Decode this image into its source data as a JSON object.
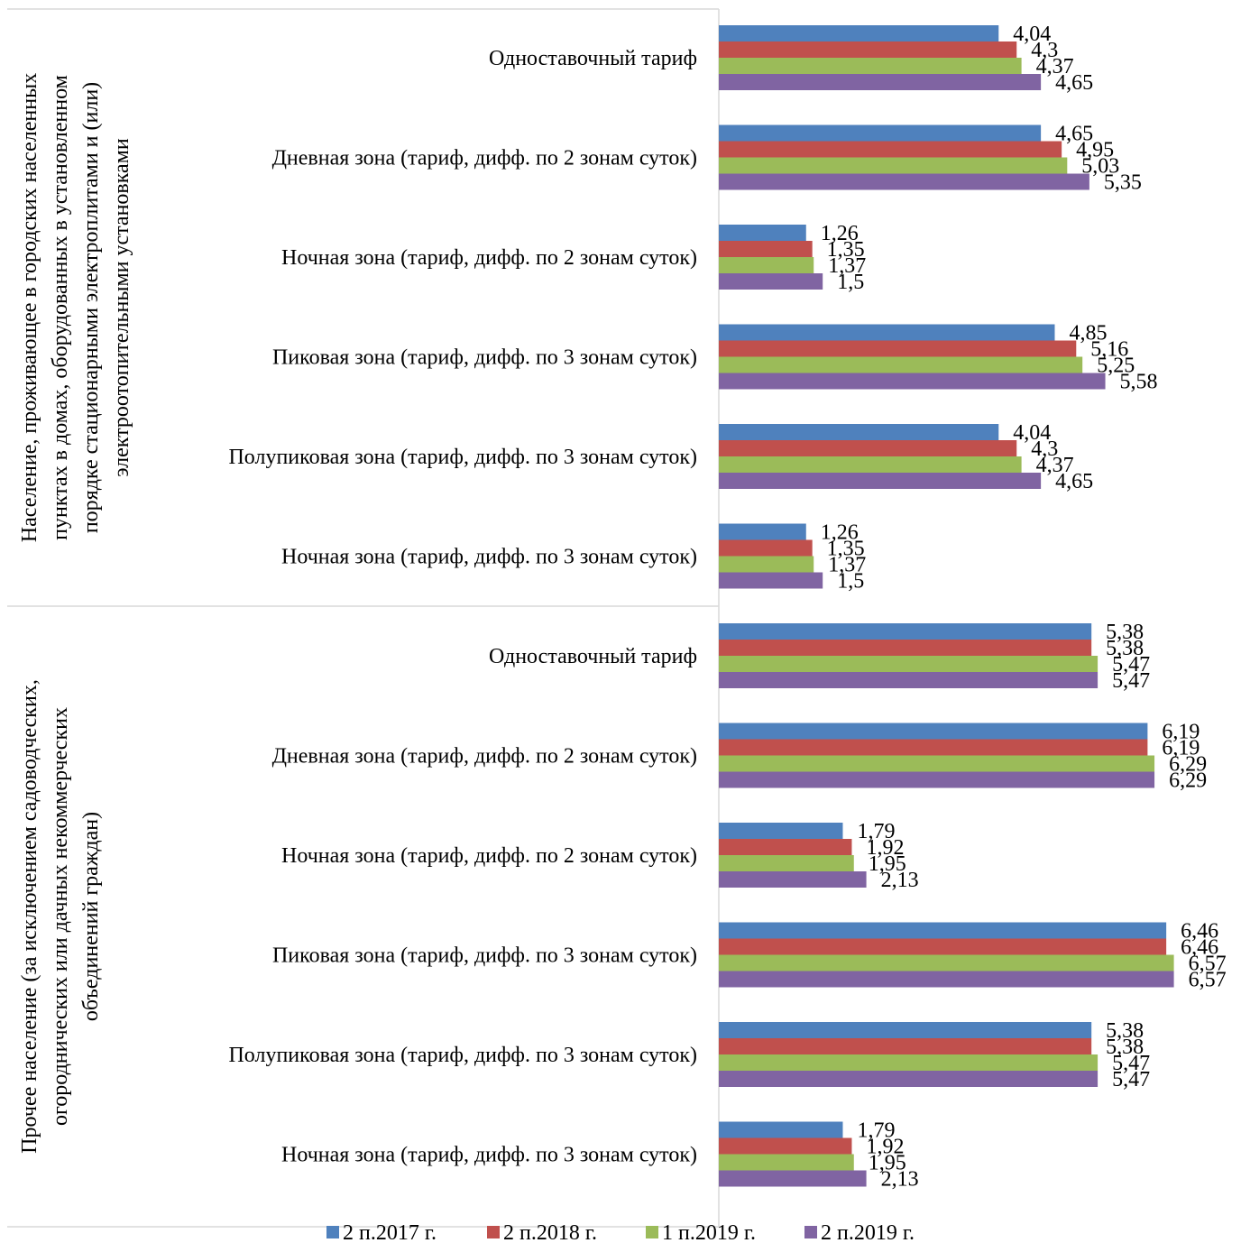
{
  "chart_data": {
    "type": "bar",
    "orientation": "horizontal",
    "groups": [
      {
        "label": "Население, проживающее в городских населенных пунктах в домах, оборудованных в установленном порядке стационарными электроплитами и (или) электроотопительными установками",
        "lines": [
          "Население, проживающее в городских населенных",
          "пунктах в домах, оборудованных в установленном",
          "порядке стационарными электроплитами и (или)",
          "электроотопительными установками"
        ],
        "categories": [
          "Одноставочный тариф",
          "Дневная зона (тариф, дифф. по 2 зонам суток)",
          "Ночная зона (тариф, дифф. по 2 зонам суток)",
          "Пиковая зона (тариф, дифф. по 3 зонам суток)",
          "Полупиковая зона (тариф, дифф. по 3 зонам суток)",
          "Ночная зона (тариф, дифф. по 3 зонам суток)"
        ],
        "series": [
          {
            "name": "2 п.2017 г.",
            "values": [
              4.04,
              4.65,
              1.26,
              4.85,
              4.04,
              1.26
            ],
            "labels": [
              "4,04",
              "4,65",
              "1,26",
              "4,85",
              "4,04",
              "1,26"
            ]
          },
          {
            "name": "2 п.2018 г.",
            "values": [
              4.3,
              4.95,
              1.35,
              5.16,
              4.3,
              1.35
            ],
            "labels": [
              "4,3",
              "4,95",
              "1,35",
              "5,16",
              "4,3",
              "1,35"
            ]
          },
          {
            "name": "1 п.2019 г.",
            "values": [
              4.37,
              5.03,
              1.37,
              5.25,
              4.37,
              1.37
            ],
            "labels": [
              "4,37",
              "5,03",
              "1,37",
              "5,25",
              "4,37",
              "1,37"
            ]
          },
          {
            "name": "2 п.2019 г.",
            "values": [
              4.65,
              5.35,
              1.5,
              5.58,
              4.65,
              1.5
            ],
            "labels": [
              "4,65",
              "5,35",
              "1,5",
              "5,58",
              "4,65",
              "1,5"
            ]
          }
        ]
      },
      {
        "label": "Прочее население (за исключением садоводческих, огороднических или дачных некоммерческих объединений граждан)",
        "lines": [
          "Прочее население (за исключением садоводческих,",
          "огороднических или дачных некоммерческих",
          "объединений граждан)"
        ],
        "categories": [
          "Одноставочный тариф",
          "Дневная зона (тариф, дифф. по 2 зонам суток)",
          "Ночная зона (тариф, дифф. по 2 зонам суток)",
          "Пиковая зона (тариф, дифф. по 3 зонам суток)",
          "Полупиковая зона (тариф, дифф. по 3 зонам суток)",
          "Ночная зона (тариф, дифф. по 3 зонам суток)"
        ],
        "series": [
          {
            "name": "2 п.2017 г.",
            "values": [
              5.38,
              6.19,
              1.79,
              6.46,
              5.38,
              1.79
            ],
            "labels": [
              "5,38",
              "6,19",
              "1,79",
              "6,46",
              "5,38",
              "1,79"
            ]
          },
          {
            "name": "2 п.2018 г.",
            "values": [
              5.38,
              6.19,
              1.92,
              6.46,
              5.38,
              1.92
            ],
            "labels": [
              "5,38",
              "6,19",
              "1,92",
              "6,46",
              "5,38",
              "1,92"
            ]
          },
          {
            "name": "1 п.2019 г.",
            "values": [
              5.47,
              6.29,
              1.95,
              6.57,
              5.47,
              1.95
            ],
            "labels": [
              "5,47",
              "6,29",
              "1,95",
              "6,57",
              "5,47",
              "1,95"
            ]
          },
          {
            "name": "2 п.2019 г.",
            "values": [
              5.47,
              6.29,
              2.13,
              6.57,
              5.47,
              2.13
            ],
            "labels": [
              "5,47",
              "6,29",
              "2,13",
              "6,57",
              "5,47",
              "2,13"
            ]
          }
        ]
      }
    ],
    "legend": {
      "position": "bottom",
      "entries": [
        "2 п.2017 г.",
        "2 п.2018 г.",
        "1 п.2019 г.",
        "2 п.2019 г."
      ]
    },
    "colors": [
      "#4f81bd",
      "#c0504d",
      "#9bbb59",
      "#8064a2"
    ],
    "xlim": [
      0,
      7
    ],
    "grid": false,
    "axis_labels_shown": false
  }
}
